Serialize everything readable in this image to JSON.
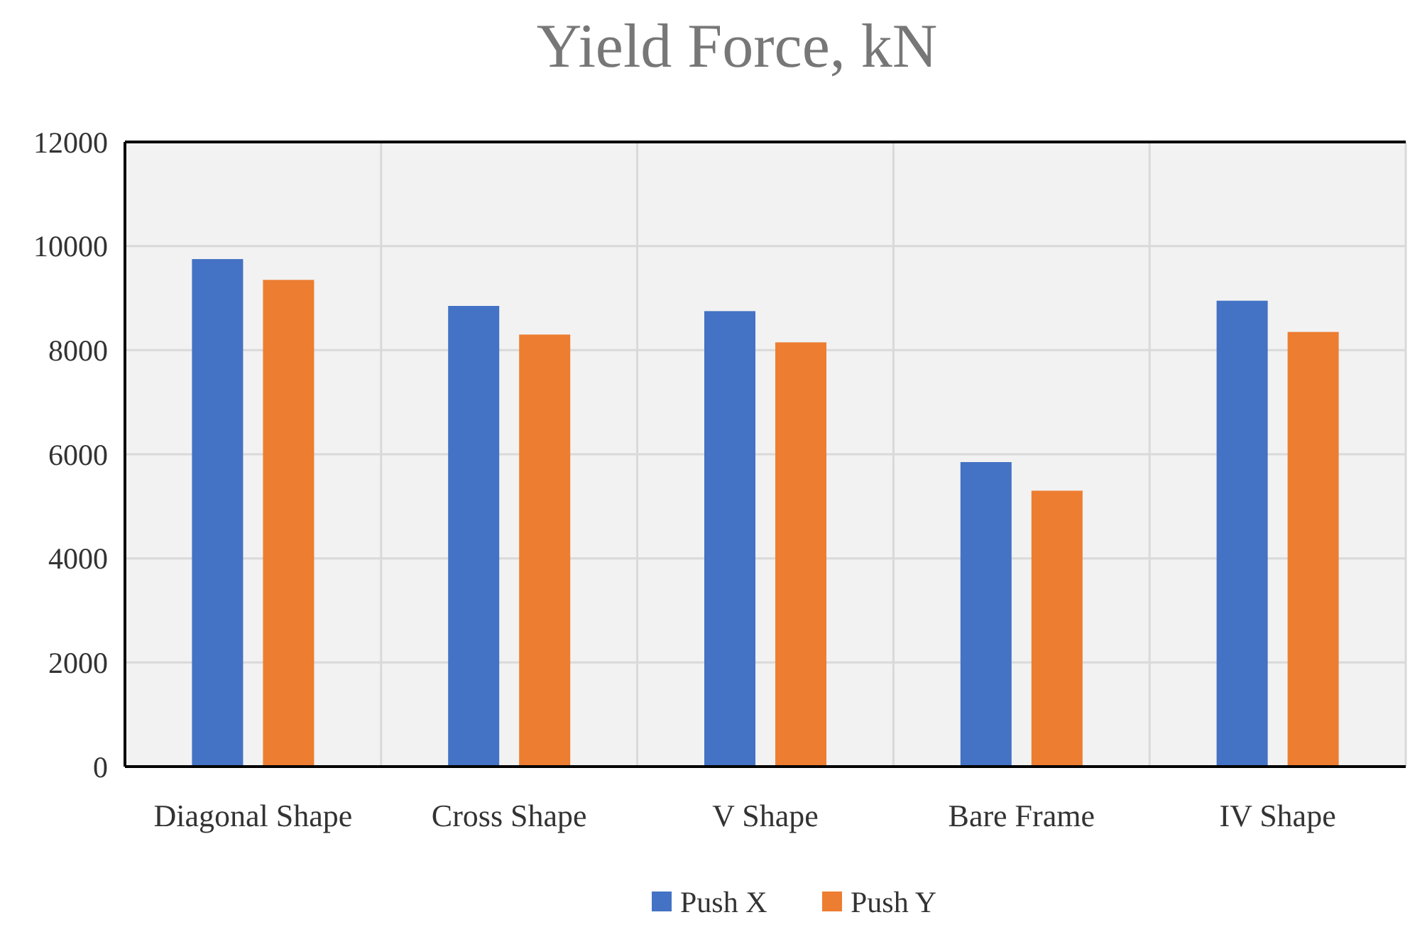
{
  "chart_data": {
    "type": "bar",
    "title": "Yield Force, kN",
    "categories": [
      "Diagonal Shape",
      "Cross Shape",
      "V Shape",
      "Bare Frame",
      "IV Shape"
    ],
    "series": [
      {
        "name": "Push X",
        "color": "#4472c4",
        "values": [
          9750,
          8850,
          8750,
          5850,
          8950
        ]
      },
      {
        "name": "Push Y",
        "color": "#ed7d31",
        "values": [
          9350,
          8300,
          8150,
          5300,
          8350
        ]
      }
    ],
    "ylim": [
      0,
      12000
    ],
    "yticks": [
      0,
      2000,
      4000,
      6000,
      8000,
      10000,
      12000
    ],
    "grid": true,
    "legend": "bottom"
  }
}
